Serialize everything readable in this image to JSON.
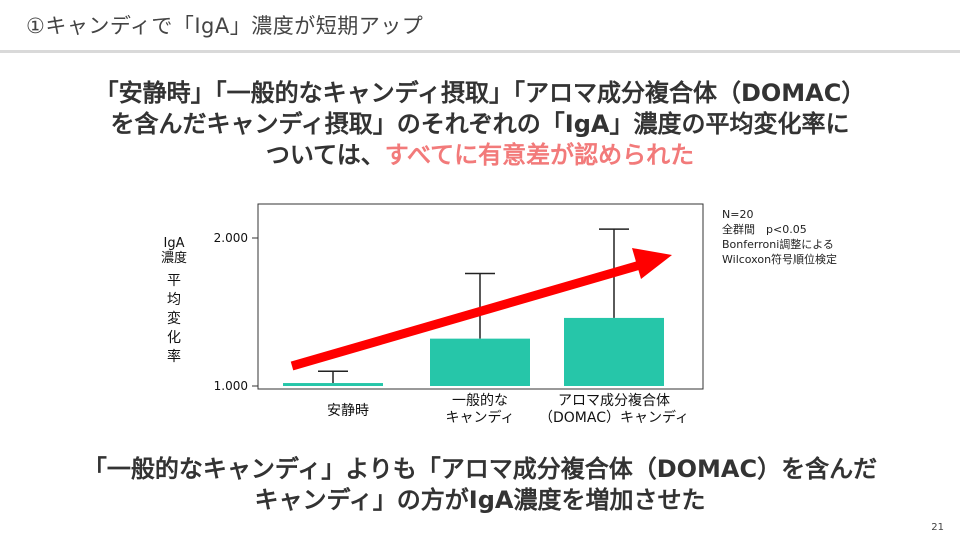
{
  "header": {
    "title": "①キャンディで「IgA」濃度が短期アップ"
  },
  "summary": {
    "line1": "「安静時」「一般的なキャンディ摂取」「アロマ成分複合体（DOMAC）",
    "line2": "を含んだキャンディ摂取」のそれぞれの「IgA」濃度の平均変化率に",
    "line3_plain": "ついては、",
    "line3_highlight": "すべてに有意差が認められた",
    "highlight_color": "#f27a7a"
  },
  "chart_data": {
    "type": "bar",
    "categories": [
      "安静時",
      "一般的な\nキャンディ",
      "アロマ成分複合体\n（DOMAC）キャンディ"
    ],
    "values": [
      1.02,
      1.32,
      1.46
    ],
    "error_upper": [
      1.1,
      1.76,
      2.06
    ],
    "ylim": [
      1.0,
      2.2
    ],
    "yticks": [
      "1.000",
      "2.000"
    ],
    "ylabel_top": "IgA",
    "ylabel_mid": "濃度",
    "ylabel_vertical": "平均変化率",
    "bar_color": "#26c6a9",
    "arrow_color": "#ff0000",
    "grid": false,
    "legend": "none"
  },
  "notes": {
    "n": "N=20",
    "significance": "全群間　p<0.05",
    "method1": "Bonferroni調整による",
    "method2": "Wilcoxon符号順位検定"
  },
  "conclusion": {
    "line1": "「一般的なキャンディ」よりも「アロマ成分複合体（DOMAC）を含んだ",
    "line2": "キャンディ」の方がIgA濃度を増加させた"
  },
  "footer": {
    "page_number": "21"
  }
}
